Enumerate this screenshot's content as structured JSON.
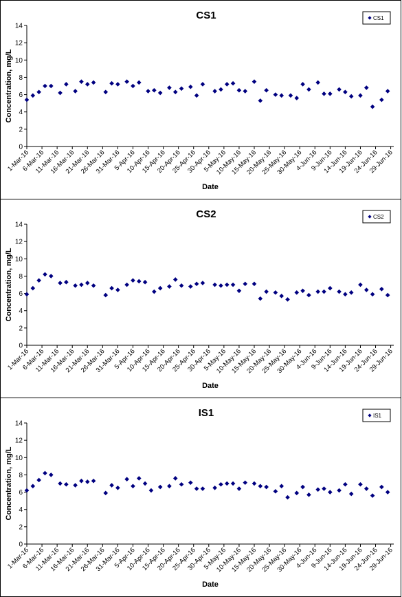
{
  "chart_data": [
    {
      "type": "scatter",
      "title": "CS1",
      "xlabel": "Date",
      "ylabel": "Concentration, mg/L",
      "ylim": [
        0,
        14
      ],
      "yticks": [
        0,
        2,
        4,
        6,
        8,
        10,
        12,
        14
      ],
      "xlim": [
        "1-Mar-16",
        "30-Jun-16"
      ],
      "xticks": [
        "1-Mar-16",
        "6-Mar-16",
        "11-Mar-16",
        "16-Mar-16",
        "21-Mar-16",
        "26-Mar-16",
        "31-Mar-16",
        "5-Apr-16",
        "10-Apr-16",
        "15-Apr-16",
        "20-Apr-16",
        "25-Apr-16",
        "30-Apr-16",
        "5-May-16",
        "10-May-16",
        "15-May-16",
        "20-May-16",
        "25-May-16",
        "30-May-16",
        "4-Jun-16",
        "9-Jun-16",
        "14-Jun-16",
        "19-Jun-16",
        "24-Jun-16",
        "29-Jun-16"
      ],
      "legend": "top-right",
      "color": "#000080",
      "series": [
        {
          "name": "CS1",
          "x": [
            "2016-03-01",
            "2016-03-03",
            "2016-03-05",
            "2016-03-07",
            "2016-03-09",
            "2016-03-12",
            "2016-03-14",
            "2016-03-17",
            "2016-03-19",
            "2016-03-21",
            "2016-03-23",
            "2016-03-27",
            "2016-03-29",
            "2016-03-31",
            "2016-04-03",
            "2016-04-05",
            "2016-04-07",
            "2016-04-10",
            "2016-04-12",
            "2016-04-14",
            "2016-04-17",
            "2016-04-19",
            "2016-04-21",
            "2016-04-24",
            "2016-04-26",
            "2016-04-28",
            "2016-05-02",
            "2016-05-04",
            "2016-05-06",
            "2016-05-08",
            "2016-05-10",
            "2016-05-12",
            "2016-05-15",
            "2016-05-17",
            "2016-05-19",
            "2016-05-22",
            "2016-05-24",
            "2016-05-27",
            "2016-05-29",
            "2016-05-31",
            "2016-06-02",
            "2016-06-05",
            "2016-06-07",
            "2016-06-09",
            "2016-06-12",
            "2016-06-14",
            "2016-06-16",
            "2016-06-19",
            "2016-06-21",
            "2016-06-23",
            "2016-06-26",
            "2016-06-28"
          ],
          "y": [
            5.4,
            5.9,
            6.3,
            7.0,
            7.0,
            6.2,
            7.2,
            6.4,
            7.5,
            7.2,
            7.4,
            6.3,
            7.3,
            7.2,
            7.5,
            7.0,
            7.4,
            6.4,
            6.5,
            6.2,
            6.8,
            6.3,
            6.7,
            6.9,
            5.9,
            7.2,
            6.4,
            6.6,
            7.2,
            7.3,
            6.5,
            6.4,
            7.5,
            5.3,
            6.5,
            6.0,
            5.9,
            5.9,
            5.6,
            7.2,
            6.6,
            7.4,
            6.1,
            6.1,
            6.6,
            6.3,
            5.8,
            5.9,
            6.8,
            4.6,
            5.4,
            6.4
          ]
        }
      ]
    },
    {
      "type": "scatter",
      "title": "CS2",
      "xlabel": "Date",
      "ylabel": "Concentration, mg/L",
      "ylim": [
        0,
        14
      ],
      "yticks": [
        0,
        2,
        4,
        6,
        8,
        10,
        12,
        14
      ],
      "xlim": [
        "1-Mar-16",
        "30-Jun-16"
      ],
      "xticks": [
        "1-Mar-16",
        "6-Mar-16",
        "11-Mar-16",
        "16-Mar-16",
        "21-Mar-16",
        "26-Mar-16",
        "31-Mar-16",
        "5-Apr-16",
        "10-Apr-16",
        "15-Apr-16",
        "20-Apr-16",
        "25-Apr-16",
        "30-Apr-16",
        "5-May-16",
        "10-May-16",
        "15-May-16",
        "20-May-16",
        "25-May-16",
        "30-May-16",
        "4-Jun-16",
        "9-Jun-16",
        "14-Jun-16",
        "19-Jun-16",
        "24-Jun-16",
        "29-Jun-16"
      ],
      "legend": "top-right",
      "color": "#000080",
      "series": [
        {
          "name": "CS2",
          "x": [
            "2016-03-01",
            "2016-03-03",
            "2016-03-05",
            "2016-03-07",
            "2016-03-09",
            "2016-03-12",
            "2016-03-14",
            "2016-03-17",
            "2016-03-19",
            "2016-03-21",
            "2016-03-23",
            "2016-03-27",
            "2016-03-29",
            "2016-03-31",
            "2016-04-03",
            "2016-04-05",
            "2016-04-07",
            "2016-04-09",
            "2016-04-12",
            "2016-04-14",
            "2016-04-17",
            "2016-04-19",
            "2016-04-21",
            "2016-04-24",
            "2016-04-26",
            "2016-04-28",
            "2016-05-02",
            "2016-05-04",
            "2016-05-06",
            "2016-05-08",
            "2016-05-10",
            "2016-05-12",
            "2016-05-15",
            "2016-05-17",
            "2016-05-19",
            "2016-05-22",
            "2016-05-24",
            "2016-05-26",
            "2016-05-29",
            "2016-05-31",
            "2016-06-02",
            "2016-06-05",
            "2016-06-07",
            "2016-06-09",
            "2016-06-12",
            "2016-06-14",
            "2016-06-16",
            "2016-06-19",
            "2016-06-21",
            "2016-06-23",
            "2016-06-26",
            "2016-06-28"
          ],
          "y": [
            5.9,
            6.6,
            7.5,
            8.2,
            8.0,
            7.2,
            7.3,
            6.9,
            7.0,
            7.2,
            6.9,
            5.8,
            6.6,
            6.4,
            7.0,
            7.5,
            7.4,
            7.3,
            6.2,
            6.6,
            6.8,
            7.6,
            6.9,
            6.8,
            7.1,
            7.2,
            7.0,
            6.9,
            7.0,
            7.0,
            6.3,
            7.1,
            7.1,
            5.4,
            6.2,
            6.1,
            5.7,
            5.3,
            6.1,
            6.3,
            5.8,
            6.2,
            6.2,
            6.6,
            6.2,
            5.9,
            6.1,
            7.0,
            6.4,
            5.9,
            6.5,
            5.8
          ]
        }
      ]
    },
    {
      "type": "scatter",
      "title": "IS1",
      "xlabel": "Date",
      "ylabel": "Concentration, mg/L",
      "ylim": [
        0,
        14
      ],
      "yticks": [
        0,
        2,
        4,
        6,
        8,
        10,
        12,
        14
      ],
      "xlim": [
        "1-Mar-16",
        "30-Jun-16"
      ],
      "xticks": [
        "1-Mar-16",
        "6-Mar-16",
        "11-Mar-16",
        "16-Mar-16",
        "21-Mar-16",
        "26-Mar-16",
        "31-Mar-16",
        "5-Apr-16",
        "10-Apr-16",
        "15-Apr-16",
        "20-Apr-16",
        "25-Apr-16",
        "30-Apr-16",
        "5-May-16",
        "10-May-16",
        "15-May-16",
        "20-May-16",
        "25-May-16",
        "30-May-16",
        "4-Jun-16",
        "9-Jun-16",
        "14-Jun-16",
        "19-Jun-16",
        "24-Jun-16",
        "29-Jun-16"
      ],
      "legend": "top-right",
      "color": "#000080",
      "series": [
        {
          "name": "IS1",
          "x": [
            "2016-03-01",
            "2016-03-03",
            "2016-03-05",
            "2016-03-07",
            "2016-03-09",
            "2016-03-12",
            "2016-03-14",
            "2016-03-17",
            "2016-03-19",
            "2016-03-21",
            "2016-03-23",
            "2016-03-27",
            "2016-03-29",
            "2016-03-31",
            "2016-04-03",
            "2016-04-05",
            "2016-04-07",
            "2016-04-09",
            "2016-04-11",
            "2016-04-14",
            "2016-04-17",
            "2016-04-19",
            "2016-04-21",
            "2016-04-24",
            "2016-04-26",
            "2016-04-28",
            "2016-05-02",
            "2016-05-04",
            "2016-05-06",
            "2016-05-08",
            "2016-05-10",
            "2016-05-12",
            "2016-05-15",
            "2016-05-17",
            "2016-05-19",
            "2016-05-22",
            "2016-05-24",
            "2016-05-26",
            "2016-05-29",
            "2016-05-31",
            "2016-06-02",
            "2016-06-05",
            "2016-06-07",
            "2016-06-09",
            "2016-06-12",
            "2016-06-14",
            "2016-06-16",
            "2016-06-19",
            "2016-06-21",
            "2016-06-23",
            "2016-06-26",
            "2016-06-28"
          ],
          "y": [
            6.2,
            6.7,
            7.4,
            8.2,
            8.0,
            7.0,
            6.9,
            6.8,
            7.3,
            7.2,
            7.3,
            5.9,
            6.8,
            6.5,
            7.5,
            6.7,
            7.6,
            7.0,
            6.2,
            6.6,
            6.7,
            7.6,
            6.9,
            7.1,
            6.4,
            6.4,
            6.5,
            6.9,
            7.0,
            7.0,
            6.4,
            7.1,
            7.0,
            6.7,
            6.6,
            6.1,
            6.7,
            5.4,
            5.9,
            6.6,
            5.7,
            6.3,
            6.4,
            6.0,
            6.2,
            6.9,
            5.8,
            6.9,
            6.4,
            5.6,
            6.6,
            6.0
          ]
        }
      ]
    }
  ]
}
